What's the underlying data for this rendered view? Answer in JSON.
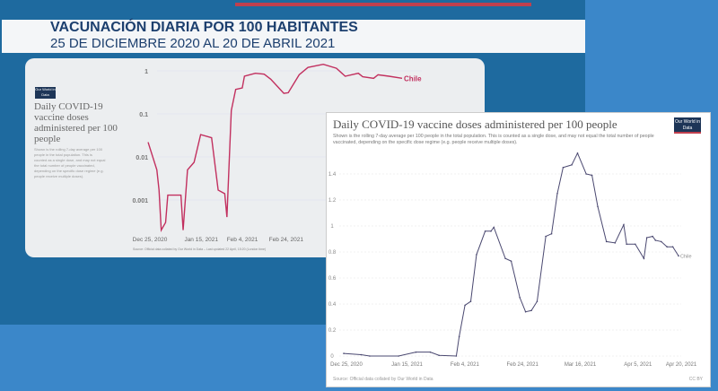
{
  "broadcast": {
    "title": "VACUNACIÓN DIARIA POR 100 HABITANTES",
    "subtitle": "25 DE DICIEMBRE 2020 AL 20 DE ABRIL 2021"
  },
  "colors": {
    "left_line": "#c2305f",
    "right_line": "#4a4870",
    "panel": "#1e6a9f",
    "background": "#3b87c9"
  },
  "left_card": {
    "logo": "Our World in Data",
    "title": "Daily COVID-19 vaccine doses administered per 100 people",
    "description": "Shown is the rolling 7-day average per 100 people in the total population. This is counted as a single dose, and may not equal the total number of people vaccinated, depending on the specific dose regime (e.g. people receive multiple doses).",
    "source": "Source: Official data collated by Our World in Data – Last updated 22 April, 15:20 (London time)"
  },
  "right_card": {
    "logo": "Our World in Data",
    "title": "Daily COVID-19 vaccine doses administered per 100 people",
    "subtitle": "Shown is the rolling 7-day average per 100 people in the total population. This is counted as a single dose, and may not equal the total number of people vaccinated, depending on the specific dose regime (e.g. people receive multiple doses).",
    "source": "Source: Official data collated by Our World in Data",
    "license": "CC BY"
  },
  "chart_data": [
    {
      "type": "line",
      "title": "Daily COVID-19 vaccine doses administered per 100 people",
      "yscale": "log",
      "yticks": [
        {
          "v": 1,
          "label": "1"
        },
        {
          "v": 0.1,
          "label": "0.1"
        },
        {
          "v": 0.01,
          "label": "0.01"
        },
        {
          "v": 0.001,
          "label": "0.001"
        }
      ],
      "xticks": [
        {
          "day": 0,
          "label": "Dec 25, 2020"
        },
        {
          "day": 21,
          "label": "Jan 15, 2021"
        },
        {
          "day": 41,
          "label": "Feb 4, 2021"
        },
        {
          "day": 61,
          "label": "Feb 24, 2021"
        }
      ],
      "x_unit": "days since Dec 25, 2020",
      "series": [
        {
          "name": "Chile",
          "points": [
            [
              0,
              0.022
            ],
            [
              4,
              0.005
            ],
            [
              5,
              0.0017
            ],
            [
              6,
              0.0002
            ],
            [
              8,
              0.0003
            ],
            [
              9,
              0.0013
            ],
            [
              15,
              0.0013
            ],
            [
              16,
              0.0002
            ],
            [
              18,
              0.005
            ],
            [
              21,
              0.0075
            ],
            [
              24,
              0.033
            ],
            [
              29,
              0.028
            ],
            [
              32,
              0.0017
            ],
            [
              35,
              0.0014
            ],
            [
              36,
              0.0004
            ],
            [
              38,
              0.12
            ],
            [
              40,
              0.37
            ],
            [
              43,
              0.4
            ],
            [
              44,
              0.75
            ],
            [
              49,
              0.88
            ],
            [
              53,
              0.84
            ],
            [
              56,
              0.64
            ],
            [
              62,
              0.3
            ],
            [
              64,
              0.31
            ],
            [
              69,
              0.81
            ],
            [
              73,
              1.2
            ],
            [
              80,
              1.42
            ],
            [
              86,
              1.15
            ],
            [
              90,
              0.75
            ],
            [
              96,
              0.88
            ],
            [
              98,
              0.73
            ],
            [
              103,
              0.67
            ],
            [
              105,
              0.81
            ],
            [
              110,
              0.75
            ],
            [
              116,
              0.67
            ]
          ]
        }
      ]
    },
    {
      "type": "line",
      "title": "Daily COVID-19 vaccine doses administered per 100 people",
      "ylim": [
        0,
        1.6
      ],
      "yticks": [
        {
          "v": 0,
          "label": "0"
        },
        {
          "v": 0.2,
          "label": "0.2"
        },
        {
          "v": 0.4,
          "label": "0.4"
        },
        {
          "v": 0.6,
          "label": "0.6"
        },
        {
          "v": 0.8,
          "label": "0.8"
        },
        {
          "v": 1,
          "label": "1"
        },
        {
          "v": 1.2,
          "label": "1.2"
        },
        {
          "v": 1.4,
          "label": "1.4"
        }
      ],
      "xticks": [
        {
          "day": 0,
          "label": "Dec 25, 2020"
        },
        {
          "day": 21,
          "label": "Jan 15, 2021"
        },
        {
          "day": 41,
          "label": "Feb 4, 2021"
        },
        {
          "day": 61,
          "label": "Feb 24, 2021"
        },
        {
          "day": 81,
          "label": "Mar 16, 2021"
        },
        {
          "day": 101,
          "label": "Apr 5, 2021"
        },
        {
          "day": 116,
          "label": "Apr 20, 2021"
        }
      ],
      "x_unit": "days since Dec 25, 2020",
      "series": [
        {
          "name": "Chile",
          "points": [
            [
              0,
              0.02
            ],
            [
              6,
              0.01
            ],
            [
              9,
              0
            ],
            [
              19,
              0
            ],
            [
              25,
              0.03
            ],
            [
              30,
              0.03
            ],
            [
              33,
              0.005
            ],
            [
              39,
              0
            ],
            [
              40,
              0.15
            ],
            [
              42,
              0.39
            ],
            [
              44,
              0.42
            ],
            [
              46,
              0.78
            ],
            [
              49,
              0.96
            ],
            [
              51,
              0.96
            ],
            [
              52,
              0.99
            ],
            [
              56,
              0.75
            ],
            [
              58,
              0.73
            ],
            [
              61,
              0.45
            ],
            [
              63,
              0.34
            ],
            [
              65,
              0.35
            ],
            [
              67,
              0.42
            ],
            [
              70,
              0.92
            ],
            [
              72,
              0.94
            ],
            [
              74,
              1.25
            ],
            [
              76,
              1.45
            ],
            [
              79,
              1.47
            ],
            [
              81,
              1.56
            ],
            [
              84,
              1.4
            ],
            [
              86,
              1.39
            ],
            [
              88,
              1.15
            ],
            [
              91,
              0.88
            ],
            [
              94,
              0.87
            ],
            [
              97,
              1.01
            ],
            [
              98,
              0.86
            ],
            [
              101,
              0.86
            ],
            [
              104,
              0.75
            ],
            [
              105,
              0.91
            ],
            [
              107,
              0.92
            ],
            [
              108,
              0.89
            ],
            [
              110,
              0.88
            ],
            [
              112,
              0.84
            ],
            [
              114,
              0.84
            ],
            [
              116,
              0.77
            ]
          ]
        }
      ]
    }
  ]
}
